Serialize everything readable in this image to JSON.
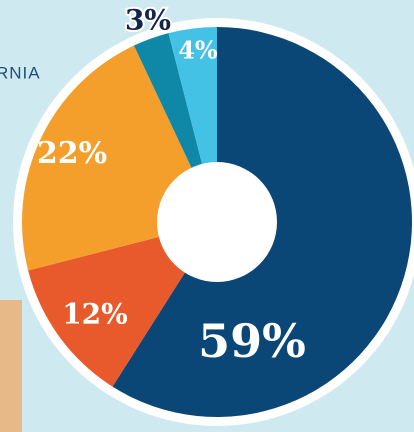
{
  "chart_data": {
    "type": "pie",
    "annotation": "RNIA",
    "values": [
      59,
      12,
      22,
      3,
      4
    ],
    "value_labels": [
      "59%",
      "12%",
      "22%",
      "3%",
      "4%"
    ],
    "colors": [
      "#0b4776",
      "#e85a2b",
      "#f49e2c",
      "#0f87a6",
      "#44c2e6"
    ]
  }
}
